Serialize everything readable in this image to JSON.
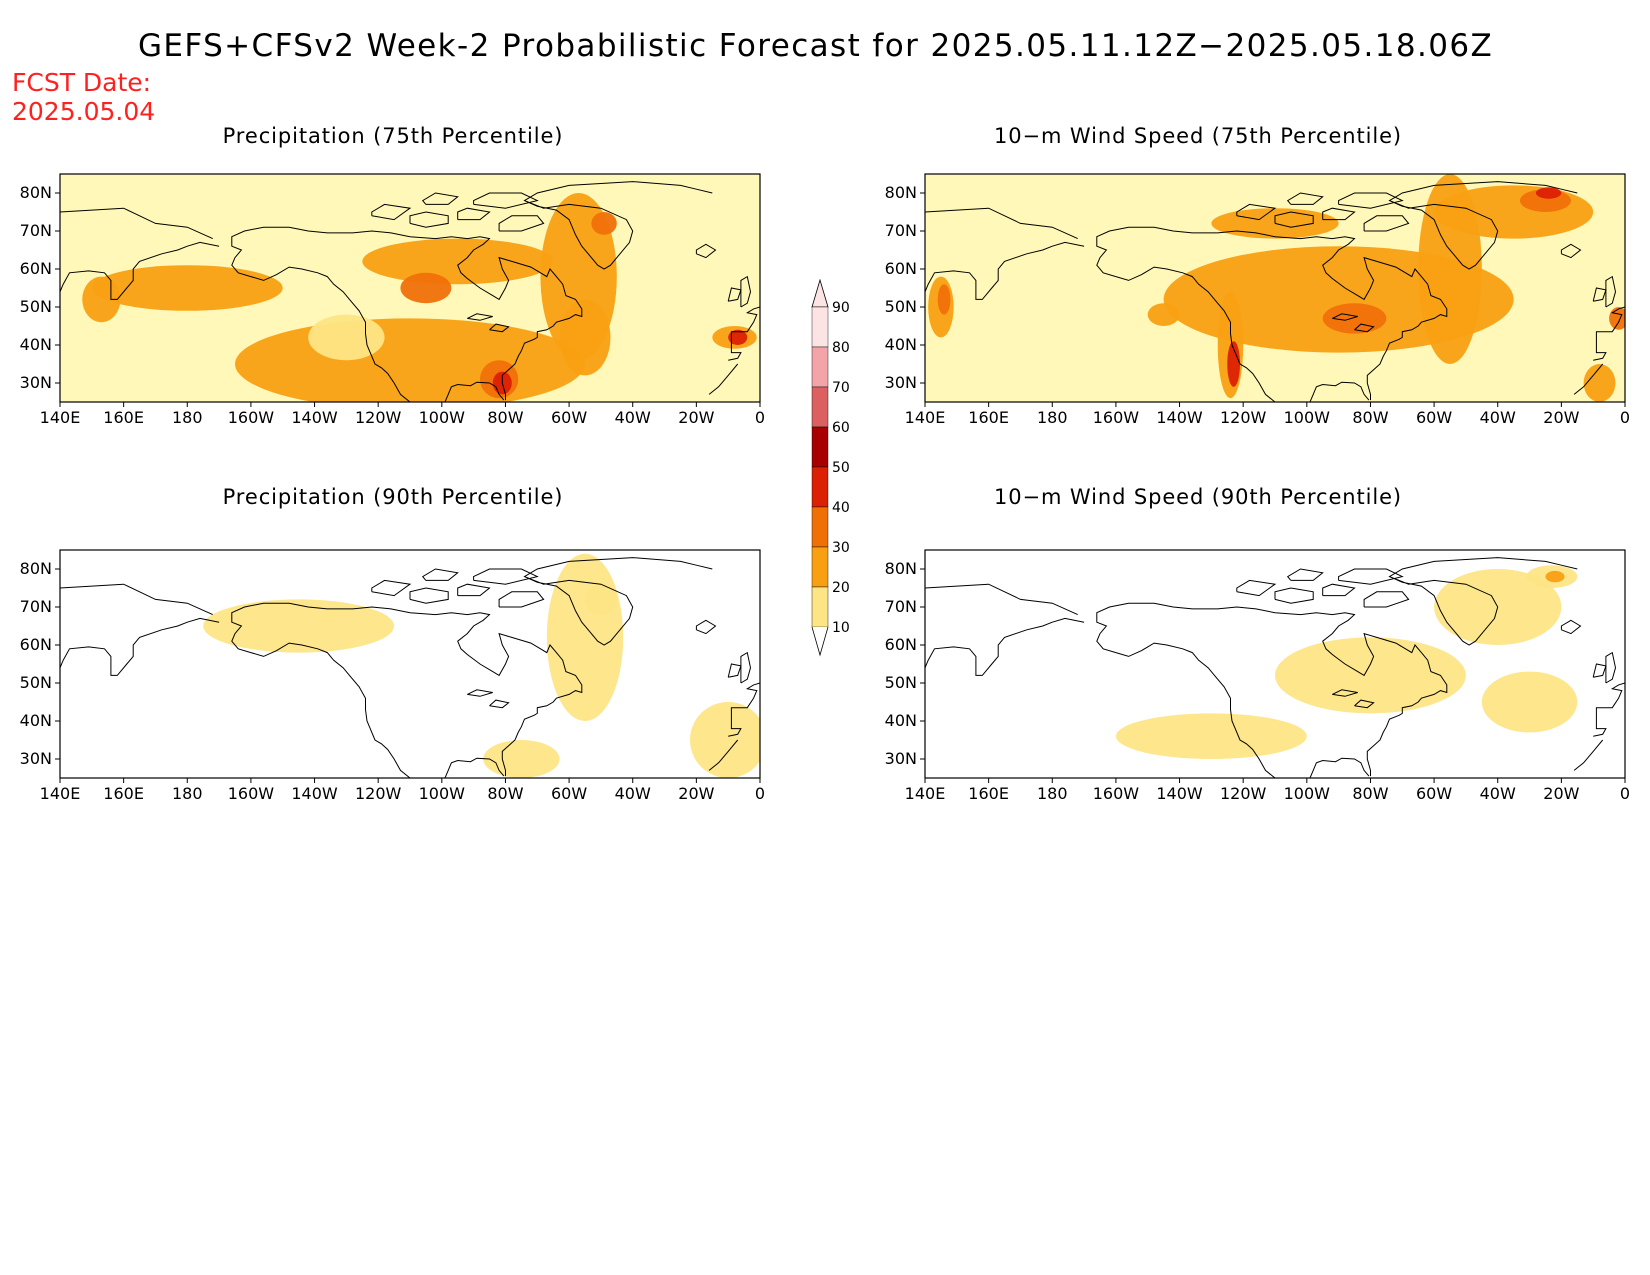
{
  "title": "GEFS+CFSv2 Week-2 Probabilistic Forecast for 2025.05.11.12Z−2025.05.18.06Z",
  "fcst_label": "FCST Date:",
  "fcst_date": "2025.05.04",
  "lat_ticks": [
    "80N",
    "70N",
    "60N",
    "50N",
    "40N",
    "30N"
  ],
  "lon_ticks": [
    "140E",
    "160E",
    "180",
    "160W",
    "140W",
    "120W",
    "100W",
    "80W",
    "60W",
    "40W",
    "20W",
    "0"
  ],
  "colorbar": {
    "levels": [
      "10",
      "20",
      "30",
      "40",
      "50",
      "60",
      "70",
      "80",
      "90"
    ],
    "colors": [
      "#fff8b8",
      "#fde585",
      "#f9a012",
      "#f07008",
      "#dc2004",
      "#a80000",
      "#dc6060",
      "#f2a4a8",
      "#fce4e4"
    ]
  },
  "panels": [
    {
      "id": "p75",
      "title": "Precipitation (75th Percentile)",
      "base": 1,
      "variant": "precip"
    },
    {
      "id": "w75",
      "title": "10−m Wind Speed (75th Percentile)",
      "base": 1,
      "variant": "wind"
    },
    {
      "id": "p90",
      "title": "Precipitation (90th Percentile)",
      "base": 0,
      "variant": "precip"
    },
    {
      "id": "w90",
      "title": "10−m Wind Speed (90th Percentile)",
      "base": 0,
      "variant": "wind"
    }
  ]
}
